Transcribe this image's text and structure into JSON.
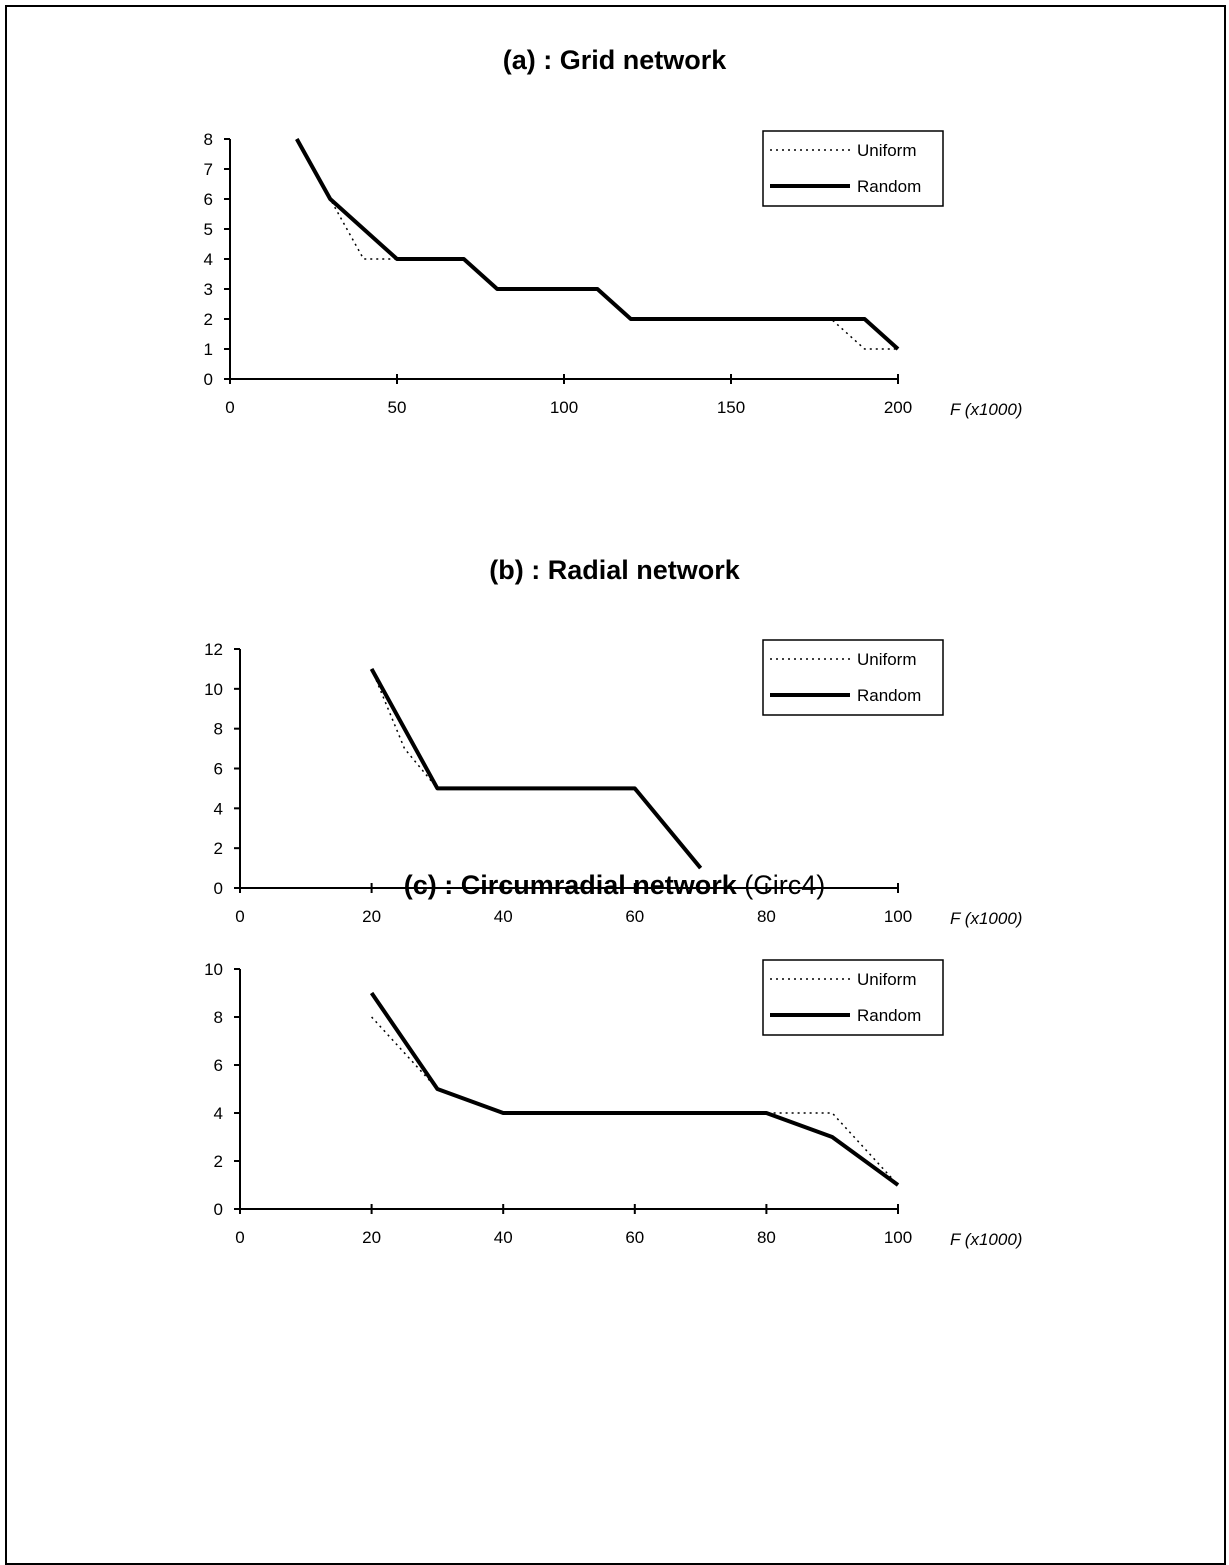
{
  "chart_data": [
    {
      "type": "line",
      "title": "(a) : Grid network",
      "xlabel": "F (x1000)",
      "ylabel": "",
      "xlim": [
        0,
        200
      ],
      "ylim": [
        0,
        8
      ],
      "xticks": [
        0,
        50,
        100,
        150,
        200
      ],
      "yticks": [
        0,
        1,
        2,
        3,
        4,
        5,
        6,
        7,
        8
      ],
      "grid": false,
      "legend": "top-right",
      "series": [
        {
          "name": "Uniform",
          "style": "dotted",
          "x": [
            20,
            30,
            40,
            50,
            70,
            80,
            110,
            120,
            180,
            190,
            200
          ],
          "y": [
            8,
            6,
            4,
            4,
            4,
            3,
            3,
            2,
            2,
            1,
            1
          ]
        },
        {
          "name": "Random",
          "style": "solid",
          "x": [
            20,
            30,
            50,
            70,
            80,
            110,
            120,
            190,
            200
          ],
          "y": [
            8,
            6,
            4,
            4,
            3,
            3,
            2,
            2,
            1
          ]
        }
      ]
    },
    {
      "type": "line",
      "title": "(b) : Radial network",
      "xlabel": "F (x1000)",
      "ylabel": "",
      "xlim": [
        0,
        100
      ],
      "ylim": [
        0,
        12
      ],
      "xticks": [
        0,
        20,
        40,
        60,
        80,
        100
      ],
      "yticks": [
        0,
        2,
        4,
        6,
        8,
        10,
        12
      ],
      "grid": false,
      "legend": "top-right",
      "series": [
        {
          "name": "Uniform",
          "style": "dotted",
          "x": [
            20,
            25,
            30,
            60,
            70
          ],
          "y": [
            11,
            7,
            5,
            5,
            1
          ]
        },
        {
          "name": "Random",
          "style": "solid",
          "x": [
            20,
            30,
            60,
            70
          ],
          "y": [
            11,
            5,
            5,
            1
          ]
        }
      ]
    },
    {
      "type": "line",
      "title": "(c) : Circumradial network",
      "title_note": "(Circ4)",
      "xlabel": "F (x1000)",
      "ylabel": "",
      "xlim": [
        0,
        100
      ],
      "ylim": [
        0,
        10
      ],
      "xticks": [
        0,
        20,
        40,
        60,
        80,
        100
      ],
      "yticks": [
        0,
        2,
        4,
        6,
        8,
        10
      ],
      "grid": false,
      "legend": "top-right",
      "series": [
        {
          "name": "Uniform",
          "style": "dotted",
          "x": [
            20,
            30,
            40,
            80,
            90,
            100
          ],
          "y": [
            8,
            5,
            4,
            4,
            4,
            1
          ]
        },
        {
          "name": "Random",
          "style": "solid",
          "x": [
            20,
            30,
            40,
            80,
            90,
            100
          ],
          "y": [
            9,
            5,
            4,
            4,
            3,
            1
          ]
        }
      ]
    }
  ],
  "titles": [
    {
      "bold": "(a) : Grid network",
      "normal": ""
    },
    {
      "bold": "(b) : Radial network",
      "normal": ""
    },
    {
      "bold": "(c) : Circumradial network",
      "normal": " (Circ4)"
    }
  ]
}
